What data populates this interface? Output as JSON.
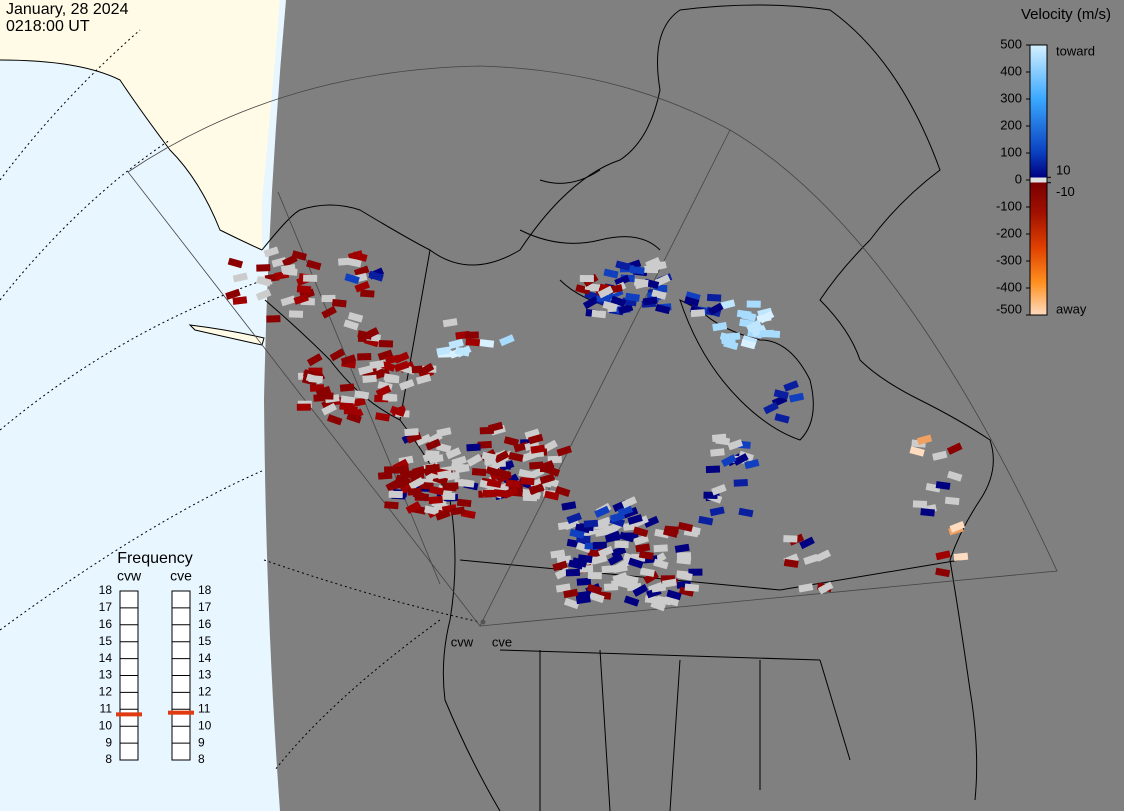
{
  "header": {
    "date": "January, 28 2024",
    "time": "0218:00 UT"
  },
  "velocity_scale": {
    "title": "Velocity (m/s)",
    "lim": [
      -500,
      500
    ],
    "ticks": [
      500,
      400,
      300,
      200,
      100,
      0,
      -100,
      -200,
      -300,
      -400,
      -500
    ],
    "inner_ticks": [
      10,
      -10
    ],
    "top_label": "toward",
    "bottom_label": "away"
  },
  "frequency": {
    "title": "Frequency",
    "lim": [
      8,
      18
    ],
    "ticks": [
      18,
      17,
      16,
      15,
      14,
      13,
      12,
      11,
      10,
      9,
      8
    ],
    "radars": [
      {
        "name": "cvw",
        "value": 10.7
      },
      {
        "name": "cve",
        "value": 10.8
      }
    ]
  },
  "map_labels": [
    "cvw",
    "cve"
  ]
}
